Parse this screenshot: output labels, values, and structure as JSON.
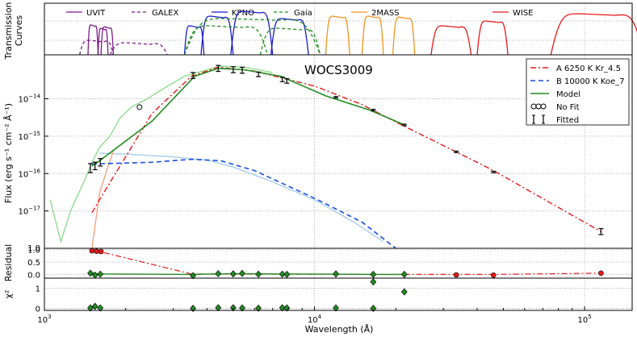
{
  "chart_data": {
    "type": "line",
    "title": "WOCS3009",
    "xlabel": "Wavelength (Å)",
    "xscale": "log",
    "xlim": [
      1000,
      150000
    ],
    "x_ticks": [
      {
        "value": 1000,
        "base": "10",
        "exp": "3"
      },
      {
        "value": 10000,
        "base": "10",
        "exp": "4"
      },
      {
        "value": 100000,
        "base": "10",
        "exp": "5"
      }
    ],
    "panels": {
      "transmission": {
        "ylabel_line1": "Transmission",
        "ylabel_line2": "Curves",
        "filters": [
          {
            "name": "UVIT",
            "color": "#7b1c8a",
            "dash": "solid",
            "lo": 1400,
            "hi": 1800,
            "segments": [
              [
                1450,
                1580,
                0.62
              ],
              [
                1580,
                1720,
                0.55
              ],
              [
                1620,
                1800,
                0.58
              ]
            ]
          },
          {
            "name": "GALEX",
            "color": "#7b1c8a",
            "dash": "dashed",
            "lo": 1350,
            "hi": 2850,
            "segments": [
              [
                1350,
                1800,
                0.3
              ],
              [
                1750,
                2850,
                0.25
              ]
            ]
          },
          {
            "name": "KPNO",
            "color": "#1a1acc",
            "dash": "solid",
            "lo": 3300,
            "hi": 9500,
            "segments": [
              [
                3300,
                3900,
                0.6
              ],
              [
                3800,
                5000,
                0.8
              ],
              [
                4900,
                7000,
                0.9
              ],
              [
                6900,
                9500,
                0.75
              ]
            ]
          },
          {
            "name": "Gaia",
            "color": "#228b22",
            "dash": "dashed",
            "lo": 3300,
            "hi": 10500,
            "segments": [
              [
                3300,
                10500,
                0.75
              ],
              [
                3300,
                6700,
                0.6
              ],
              [
                6300,
                10500,
                0.55
              ]
            ]
          },
          {
            "name": "2MASS",
            "color": "#f0931c",
            "dash": "solid",
            "lo": 11000,
            "hi": 24000,
            "segments": [
              [
                11000,
                13500,
                0.8
              ],
              [
                15000,
                18000,
                0.8
              ],
              [
                19500,
                23500,
                0.78
              ]
            ]
          },
          {
            "name": "WISE",
            "color": "#e41a1c",
            "dash": "solid",
            "lo": 27000,
            "hi": 150000,
            "segments": [
              [
                27000,
                38000,
                0.6
              ],
              [
                40000,
                52000,
                0.7
              ],
              [
                75000,
                165000,
                0.85
              ]
            ]
          }
        ]
      },
      "sed": {
        "ylabel": "Flux (erg s⁻¹ cm⁻² Å⁻¹)",
        "yscale": "log",
        "ylim": [
          1e-18,
          1.5e-13
        ],
        "y_ticks": [
          {
            "value": 1e-17,
            "base": "10",
            "exp": "−17"
          },
          {
            "value": 1e-16,
            "base": "10",
            "exp": "−16"
          },
          {
            "value": 1e-15,
            "base": "10",
            "exp": "−15"
          },
          {
            "value": 1e-14,
            "base": "10",
            "exp": "−14"
          }
        ],
        "y_tick_bottom": "1.0",
        "legend": [
          {
            "label": "A 6250 K  Kr_4.5",
            "color": "#e41a1c",
            "style": "dashdot"
          },
          {
            "label": "B 10000 K  Koe_7",
            "color": "#1a4de6",
            "style": "dashed"
          },
          {
            "label": "Model",
            "color": "#228b22",
            "style": "solid"
          },
          {
            "label": "No Fit",
            "color": "#000000",
            "style": "circles"
          },
          {
            "label": "Fitted",
            "color": "#000000",
            "style": "errorbars"
          }
        ],
        "component_A": [
          [
            1500,
            9e-18
          ],
          [
            1600,
            2e-17
          ],
          [
            2500,
            4e-15
          ],
          [
            3500,
            4e-14
          ],
          [
            4400,
            7e-14
          ],
          [
            6000,
            5.5e-14
          ],
          [
            10000,
            2.2e-14
          ],
          [
            15000,
            7e-15
          ],
          [
            21000,
            2e-15
          ],
          [
            33000,
            4e-16
          ],
          [
            46000,
            1.2e-16
          ],
          [
            115000,
            2.8e-18
          ]
        ],
        "component_B": [
          [
            1500,
            1.8e-16
          ],
          [
            2500,
            2e-16
          ],
          [
            3500,
            2.4e-16
          ],
          [
            4500,
            2.2e-16
          ],
          [
            6000,
            1.2e-16
          ],
          [
            10000,
            2.2e-17
          ],
          [
            15000,
            5e-18
          ],
          [
            20000,
            1e-18
          ]
        ],
        "model": [
          [
            1500,
            1.6e-16
          ],
          [
            1600,
            2.2e-16
          ],
          [
            2500,
            2.5e-15
          ],
          [
            3600,
            4e-14
          ],
          [
            4400,
            6.5e-14
          ],
          [
            5500,
            6e-14
          ],
          [
            7500,
            4e-14
          ],
          [
            11000,
            1.2e-14
          ],
          [
            16000,
            5e-15
          ],
          [
            21500,
            2e-15
          ]
        ],
        "spectrum_A_high_res_green": [
          [
            1050,
            2e-17
          ],
          [
            1150,
            1.5e-18
          ],
          [
            1250,
            1e-17
          ],
          [
            1400,
            6e-17
          ],
          [
            1500,
            2e-16
          ],
          [
            1600,
            5e-16
          ],
          [
            1750,
            1e-15
          ],
          [
            1900,
            3e-15
          ],
          [
            2100,
            6e-15
          ],
          [
            2400,
            1e-14
          ],
          [
            2800,
            2e-14
          ],
          [
            3300,
            4e-14
          ],
          [
            4000,
            6e-14
          ],
          [
            4500,
            7.5e-14
          ],
          [
            5500,
            7e-14
          ],
          [
            7000,
            5e-14
          ]
        ],
        "spectrum_B_high_res_blue": [
          [
            1600,
            3.5e-16
          ],
          [
            2000,
            3.3e-16
          ],
          [
            2500,
            3e-16
          ],
          [
            3000,
            2.8e-16
          ],
          [
            3500,
            2.5e-16
          ],
          [
            4000,
            2.3e-16
          ],
          [
            5000,
            1.5e-16
          ],
          [
            7000,
            6e-17
          ],
          [
            10000,
            2e-17
          ],
          [
            14000,
            5e-18
          ],
          [
            18000,
            1.5e-18
          ]
        ],
        "spectrum_A_orange": [
          [
            1500,
            1e-18
          ],
          [
            1600,
            3e-17
          ],
          [
            1700,
            1.2e-16
          ],
          [
            1800,
            4e-16
          ]
        ],
        "fitted_points": [
          {
            "x": 1480,
            "y": 1.4e-16,
            "err": 0.12
          },
          {
            "x": 1540,
            "y": 1.6e-16,
            "err": 0.1
          },
          {
            "x": 1610,
            "y": 2e-16,
            "err": 0.1
          },
          {
            "x": 3550,
            "y": 4.2e-14,
            "err": 0.08
          },
          {
            "x": 4400,
            "y": 6.5e-14,
            "err": 0.08
          },
          {
            "x": 5000,
            "y": 6e-14,
            "err": 0.08
          },
          {
            "x": 5400,
            "y": 5.8e-14,
            "err": 0.08
          },
          {
            "x": 6200,
            "y": 4.5e-14,
            "err": 0.06
          },
          {
            "x": 7600,
            "y": 3.3e-14,
            "err": 0.06
          },
          {
            "x": 7900,
            "y": 3e-14,
            "err": 0.06
          },
          {
            "x": 12000,
            "y": 1.1e-14,
            "err": 0.02
          },
          {
            "x": 16500,
            "y": 5e-15,
            "err": 0.02
          },
          {
            "x": 21500,
            "y": 2e-15,
            "err": 0.02
          },
          {
            "x": 33500,
            "y": 3.8e-16,
            "err": 0.02
          },
          {
            "x": 46000,
            "y": 1.1e-16,
            "err": 0.02
          },
          {
            "x": 115000,
            "y": 2.8e-18,
            "err": 0.08
          }
        ],
        "nofit_points": [
          {
            "x": 2250,
            "y": 6e-15
          }
        ]
      },
      "residual": {
        "ylabel": "Residual",
        "ylim": [
          -0.15,
          1.05
        ],
        "y_ticks": [
          "0.0",
          "0.5",
          "1.0"
        ],
        "y_tick_values": [
          0,
          0.5,
          1
        ],
        "red_line": [
          [
            1500,
            0.95
          ],
          [
            1600,
            0.92
          ],
          [
            3500,
            0.02
          ],
          [
            21000,
            0.0
          ],
          [
            33000,
            0.0
          ],
          [
            46000,
            0.0
          ],
          [
            115000,
            0.05
          ]
        ],
        "green_line": [
          [
            1500,
            0.05
          ],
          [
            1600,
            0.02
          ],
          [
            3500,
            0.0
          ],
          [
            4400,
            0.02
          ],
          [
            5000,
            0.03
          ],
          [
            7500,
            0.02
          ],
          [
            12000,
            0.01
          ],
          [
            16500,
            0.0
          ],
          [
            21500,
            0.0
          ]
        ],
        "red_points": [
          [
            1500,
            0.95
          ],
          [
            1560,
            0.93
          ],
          [
            1620,
            0.92
          ],
          [
            33500,
            -0.02
          ],
          [
            46000,
            -0.03
          ],
          [
            115000,
            0.05
          ]
        ],
        "green_points": [
          [
            1480,
            0.05
          ],
          [
            1540,
            -0.03
          ],
          [
            1610,
            0.01
          ],
          [
            3550,
            -0.05
          ],
          [
            4400,
            0.03
          ],
          [
            5000,
            0.02
          ],
          [
            5400,
            0.04
          ],
          [
            6200,
            0.01
          ],
          [
            7600,
            0.01
          ],
          [
            7900,
            0.0
          ],
          [
            12000,
            0.02
          ],
          [
            16500,
            0.0
          ],
          [
            16500,
            -0.3
          ],
          [
            21500,
            0.0
          ]
        ]
      },
      "chi2": {
        "ylabel": "χ²",
        "ylim": [
          -0.1,
          1.5
        ],
        "y_ticks": [
          "0",
          "1"
        ],
        "y_tick_values": [
          0,
          1
        ],
        "green_points": [
          [
            1480,
            0.02
          ],
          [
            1540,
            0.1
          ],
          [
            1610,
            0.02
          ],
          [
            3550,
            0.0
          ],
          [
            4400,
            0.03
          ],
          [
            5000,
            0.03
          ],
          [
            5400,
            0.02
          ],
          [
            6200,
            0.01
          ],
          [
            7600,
            0.03
          ],
          [
            7900,
            0.02
          ],
          [
            12000,
            0.02
          ],
          [
            16500,
            0.0
          ],
          [
            21500,
            0.82
          ]
        ]
      }
    }
  }
}
